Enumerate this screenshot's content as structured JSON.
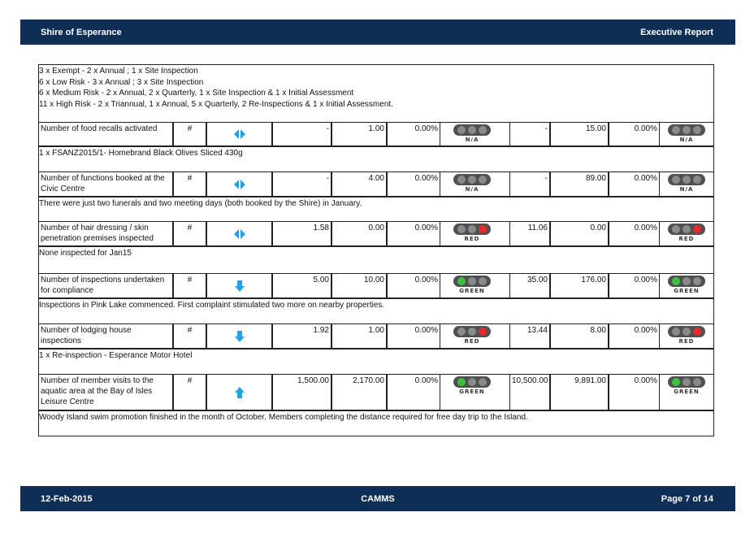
{
  "header": {
    "org": "Shire of Esperance",
    "report": "Executive Report"
  },
  "notes": [
    "3 x Exempt - 2 x Annual ; 1 x Site Inspection",
    "6 x Low Risk - 3 x Annual ; 3 x Site Inspection",
    "6 x Medium Risk - 2 x Annual, 2 x Quarterly, 1 x Site Inspection & 1 x Initial Assessment",
    "11 x High Risk - 2 x Triannual, 1 x Annual, 5 x Quarterly,  2 Re-Inspections & 1 x Initial Assessment."
  ],
  "rows": [
    {
      "name": "Number of food recalls activated",
      "unit": "#",
      "trend": "both",
      "month_target": "-",
      "month_actual": "1.00",
      "month_var": "0.00%",
      "month_status": "N/A",
      "ytd_target": "-",
      "ytd_actual": "15.00",
      "ytd_var": "0.00%",
      "ytd_status": "N/A",
      "comment": "1 x FSANZ2015/1- Homebrand Black Olives Sliced 430g"
    },
    {
      "name": "Number of functions booked at the Civic Centre",
      "unit": "#",
      "trend": "both",
      "month_target": "-",
      "month_actual": "4.00",
      "month_var": "0.00%",
      "month_status": "N/A",
      "ytd_target": "-",
      "ytd_actual": "89.00",
      "ytd_var": "0.00%",
      "ytd_status": "N/A",
      "comment": "There were just two funerals and two meeting days (both booked by the Shire) in January."
    },
    {
      "name": "Number of hair dressing / skin penetration premises inspected",
      "unit": "#",
      "trend": "both",
      "month_target": "1.58",
      "month_actual": "0.00",
      "month_var": "0.00%",
      "month_status": "RED",
      "ytd_target": "11.06",
      "ytd_actual": "0.00",
      "ytd_var": "0.00%",
      "ytd_status": "RED",
      "comment": "None inspected for Jan15"
    },
    {
      "name": "Number of inspections undertaken for compliance",
      "unit": "#",
      "trend": "down",
      "month_target": "5.00",
      "month_actual": "10.00",
      "month_var": "0.00%",
      "month_status": "GREEN",
      "ytd_target": "35.00",
      "ytd_actual": "176.00",
      "ytd_var": "0.00%",
      "ytd_status": "GREEN",
      "comment": "Inspections in Pink Lake commenced. First complaint stimulated two more on nearby properties."
    },
    {
      "name": "Number of lodging house inspections",
      "unit": "#",
      "trend": "down",
      "month_target": "1.92",
      "month_actual": "1.00",
      "month_var": "0.00%",
      "month_status": "RED",
      "ytd_target": "13.44",
      "ytd_actual": "8.00",
      "ytd_var": "0.00%",
      "ytd_status": "RED",
      "comment": "1 x Re-inspection - Esperance Motor Hotel"
    },
    {
      "name": "Number of member visits to the aquatic area at the Bay of Isles Leisure Centre",
      "unit": "#",
      "trend": "up",
      "month_target": "1,500.00",
      "month_actual": "2,170.00",
      "month_var": "0.00%",
      "month_status": "GREEN",
      "ytd_target": "10,500.00",
      "ytd_actual": "9,891.00",
      "ytd_var": "0.00%",
      "ytd_status": "GREEN",
      "comment": "Woody Island swim promotion finished in the month of October. Members completing the distance required for free day trip to the Island."
    }
  ],
  "footer": {
    "date": "12-Feb-2015",
    "center": "CAMMS",
    "page": "Page 7 of 14"
  },
  "colors": {
    "bar": "#0e2e56",
    "arrow": "#1fa3e8",
    "green_on": "#3fbf3f",
    "red_on": "#e52b2b",
    "bulb_off": "#8a8a8a"
  }
}
